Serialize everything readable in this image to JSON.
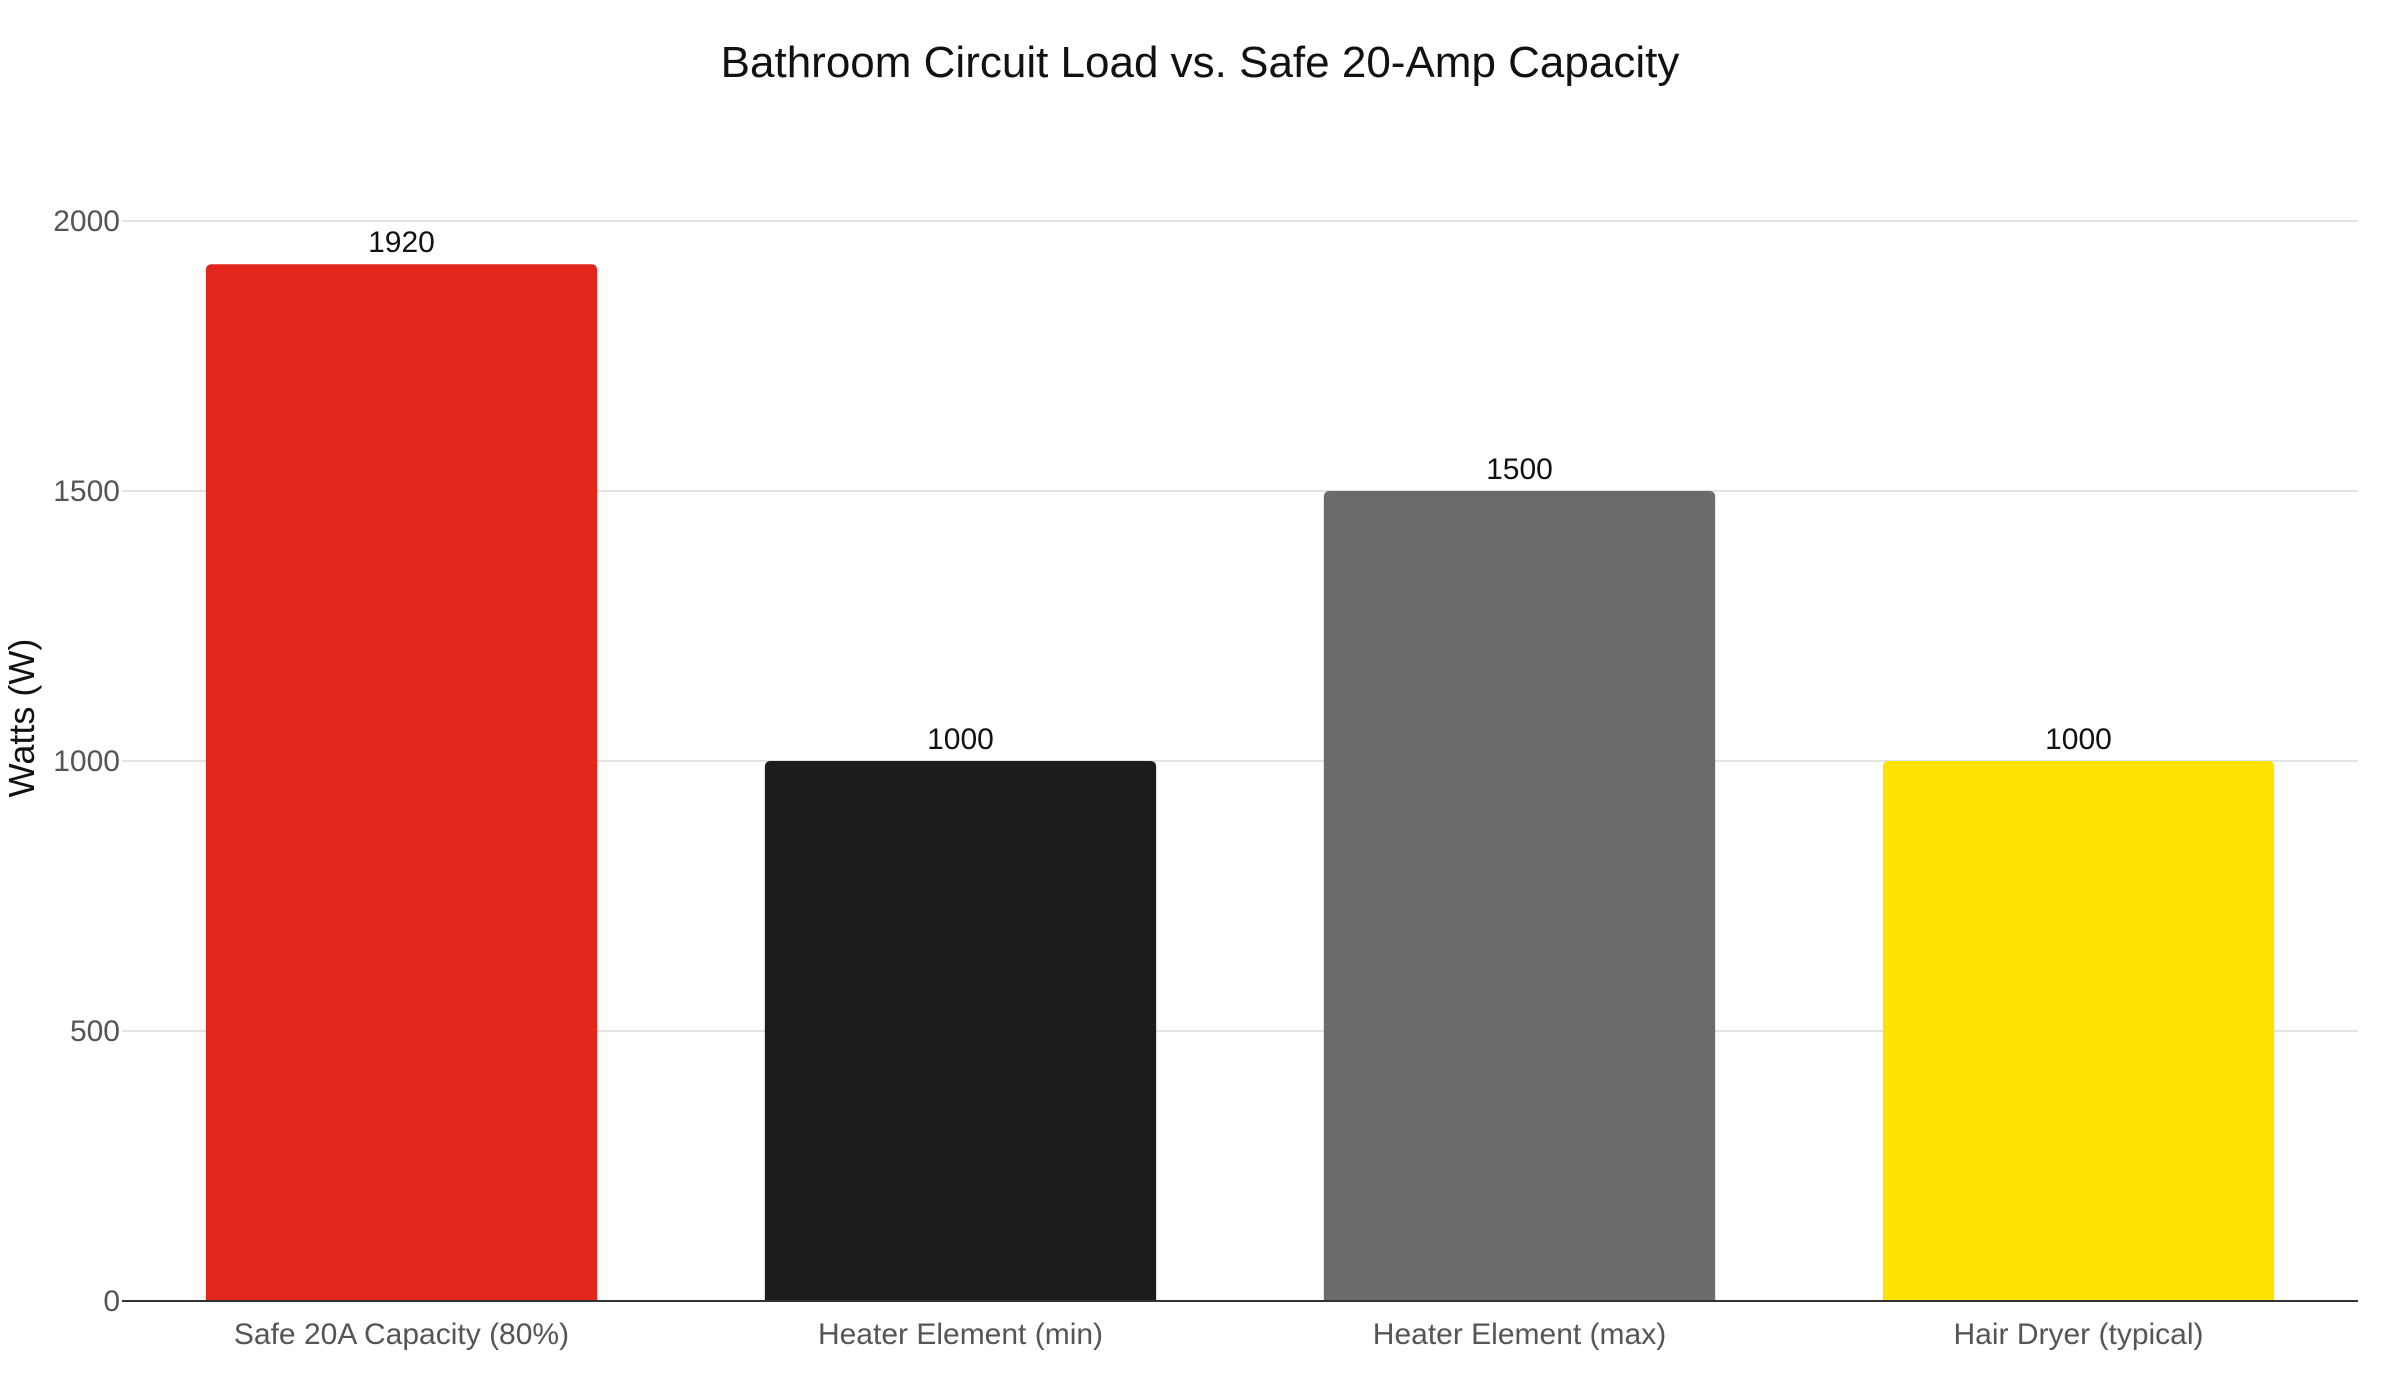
{
  "chart_data": {
    "type": "bar",
    "title": "Bathroom Circuit Load vs. Safe 20-Amp Capacity",
    "xlabel": "",
    "ylabel": "Watts (W)",
    "categories": [
      "Safe 20A Capacity (80%)",
      "Heater Element (min)",
      "Heater Element (max)",
      "Hair Dryer (typical)"
    ],
    "values": [
      1920,
      1000,
      1500,
      1000
    ],
    "data_labels": [
      "1920",
      "1000",
      "1500",
      "1000"
    ],
    "colors": [
      "#e2261b",
      "#1c1c1c",
      "#6b6b6b",
      "#fde100"
    ],
    "ylim": [
      0,
      2000
    ],
    "yticks": [
      0,
      500,
      1000,
      1500,
      2000
    ],
    "ytick_labels": [
      "0",
      "500",
      "1000",
      "1500",
      "2000"
    ],
    "grid": true,
    "legend": "none"
  }
}
